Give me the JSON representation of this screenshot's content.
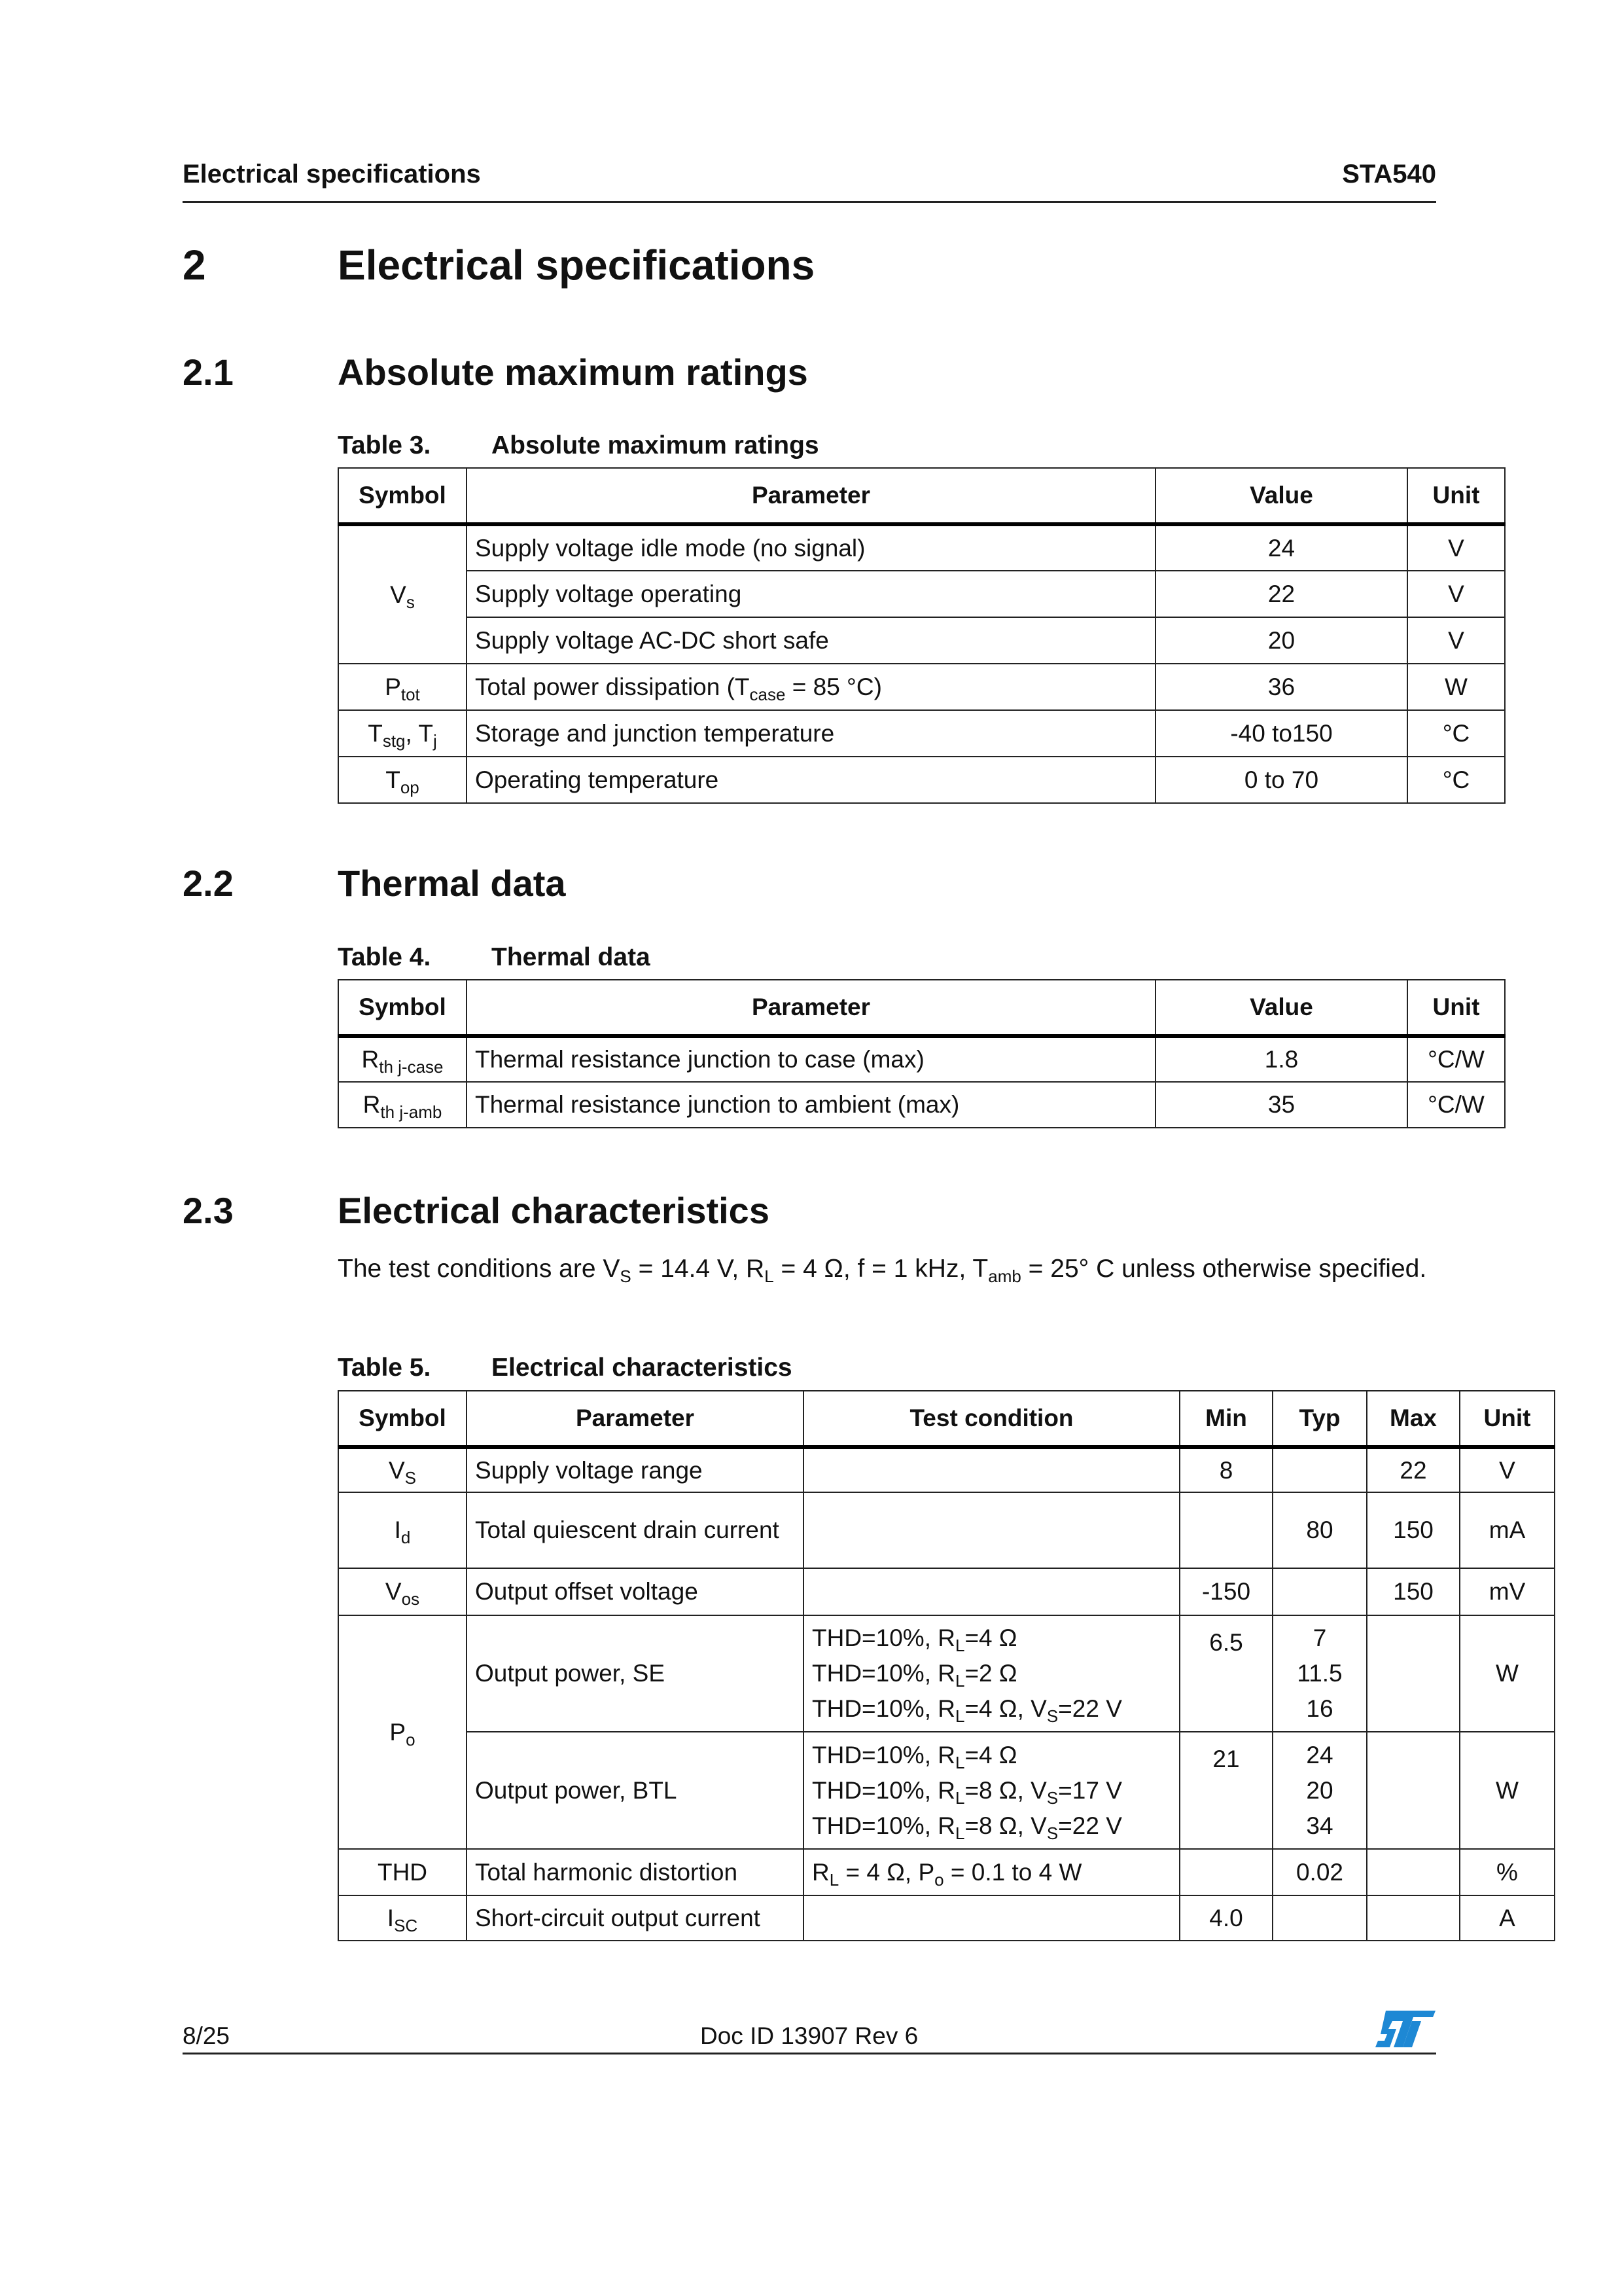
{
  "header": {
    "left": "Electrical specifications",
    "right": "STA540"
  },
  "chapter": {
    "number": "2",
    "title": "Electrical specifications"
  },
  "sections": [
    {
      "number": "2.1",
      "title": "Absolute maximum ratings"
    },
    {
      "number": "2.2",
      "title": "Thermal data"
    },
    {
      "number": "2.3",
      "title": "Electrical characteristics"
    }
  ],
  "table3": {
    "label": "Table 3.",
    "title": "Absolute maximum ratings",
    "headers": [
      "Symbol",
      "Parameter",
      "Value",
      "Unit"
    ],
    "rows": [
      {
        "symbol": [
          {
            "t": "V"
          },
          {
            "s": "s"
          }
        ],
        "span": 3,
        "parameter": [
          {
            "t": "Supply voltage idle mode (no signal)"
          }
        ],
        "value": "24",
        "unit": "V"
      },
      {
        "parameter": [
          {
            "t": "Supply voltage operating"
          }
        ],
        "value": "22",
        "unit": "V"
      },
      {
        "parameter": [
          {
            "t": "Supply voltage AC-DC short safe"
          }
        ],
        "value": "20",
        "unit": "V"
      },
      {
        "symbol": [
          {
            "t": "P"
          },
          {
            "s": "tot"
          }
        ],
        "span": 1,
        "parameter": [
          {
            "t": "Total power dissipation (T"
          },
          {
            "s": "case"
          },
          {
            "t": " = 85 °C)"
          }
        ],
        "value": "36",
        "unit": "W"
      },
      {
        "symbol": [
          {
            "t": "T"
          },
          {
            "s": "stg"
          },
          {
            "t": ", T"
          },
          {
            "s": "j"
          }
        ],
        "span": 1,
        "parameter": [
          {
            "t": "Storage and junction temperature"
          }
        ],
        "value": "-40 to150",
        "unit": "°C"
      },
      {
        "symbol": [
          {
            "t": "T"
          },
          {
            "s": "op"
          }
        ],
        "span": 1,
        "parameter": [
          {
            "t": "Operating temperature"
          }
        ],
        "value": "0 to 70",
        "unit": "°C"
      }
    ]
  },
  "table4": {
    "label": "Table 4.",
    "title": "Thermal data",
    "headers": [
      "Symbol",
      "Parameter",
      "Value",
      "Unit"
    ],
    "rows": [
      {
        "symbol": [
          {
            "t": "R"
          },
          {
            "s": "th j-case"
          }
        ],
        "span": 1,
        "parameter": [
          {
            "t": "Thermal resistance junction to case (max)"
          }
        ],
        "value": "1.8",
        "unit": "°C/W"
      },
      {
        "symbol": [
          {
            "t": "R"
          },
          {
            "s": "th j-amb"
          }
        ],
        "span": 1,
        "parameter": [
          {
            "t": "Thermal resistance junction to ambient (max)"
          }
        ],
        "value": "35",
        "unit": "°C/W"
      }
    ]
  },
  "intro": [
    {
      "t": "The test conditions are V"
    },
    {
      "s": "S"
    },
    {
      "t": " = 14.4 V, R"
    },
    {
      "s": "L"
    },
    {
      "t": " = 4 Ω, f = 1 kHz, T"
    },
    {
      "s": "amb"
    },
    {
      "t": " = 25° C unless otherwise specified."
    }
  ],
  "table5": {
    "label": "Table 5.",
    "title": "Electrical characteristics",
    "headers": [
      "Symbol",
      "Parameter",
      "Test condition",
      "Min",
      "Typ",
      "Max",
      "Unit"
    ],
    "rows": [
      {
        "symbol": [
          {
            "t": "V"
          },
          {
            "s": "S"
          }
        ],
        "span": 1,
        "parameter": "Supply voltage range",
        "conditions": [],
        "min": "8",
        "typ": [],
        "max": "22",
        "unit": "V"
      },
      {
        "symbol": [
          {
            "t": "I"
          },
          {
            "s": "d"
          }
        ],
        "span": 1,
        "parameter": "Total quiescent drain current",
        "conditions": [],
        "min": "",
        "typ": [
          "80"
        ],
        "max": "150",
        "unit": "mA"
      },
      {
        "symbol": [
          {
            "t": "V"
          },
          {
            "s": "os"
          }
        ],
        "span": 1,
        "parameter": "Output offset voltage",
        "conditions": [],
        "min": "-150",
        "typ": [],
        "max": "150",
        "unit": "mV"
      },
      {
        "symbol": [
          {
            "t": "P"
          },
          {
            "s": "o"
          }
        ],
        "span": 2,
        "parameter": "Output power, SE",
        "conditions": [
          [
            {
              "t": "THD=10%, R"
            },
            {
              "s": "L"
            },
            {
              "t": "=4 Ω"
            }
          ],
          [
            {
              "t": "THD=10%, R"
            },
            {
              "s": "L"
            },
            {
              "t": "=2 Ω"
            }
          ],
          [
            {
              "t": "THD=10%, R"
            },
            {
              "s": "L"
            },
            {
              "t": "=4 Ω, V"
            },
            {
              "s": "S"
            },
            {
              "t": "=22 V"
            }
          ]
        ],
        "min": "6.5",
        "typ": [
          "7",
          "11.5",
          "16"
        ],
        "max": "",
        "unit": "W"
      },
      {
        "parameter": "Output power, BTL",
        "conditions": [
          [
            {
              "t": "THD=10%, R"
            },
            {
              "s": "L"
            },
            {
              "t": "=4 Ω"
            }
          ],
          [
            {
              "t": "THD=10%, R"
            },
            {
              "s": "L"
            },
            {
              "t": "=8 Ω, V"
            },
            {
              "s": "S"
            },
            {
              "t": "=17 V"
            }
          ],
          [
            {
              "t": "THD=10%, R"
            },
            {
              "s": "L"
            },
            {
              "t": "=8 Ω, V"
            },
            {
              "s": "S"
            },
            {
              "t": "=22 V"
            }
          ]
        ],
        "min": "21",
        "typ": [
          "24",
          "20",
          "34"
        ],
        "max": "",
        "unit": "W"
      },
      {
        "symbol": [
          {
            "t": "THD"
          }
        ],
        "span": 1,
        "parameter": "Total harmonic distortion",
        "conditions": [
          [
            {
              "t": "R"
            },
            {
              "s": "L"
            },
            {
              "t": " = 4 Ω, P"
            },
            {
              "s": "o"
            },
            {
              "t": " = 0.1 to 4 W"
            }
          ]
        ],
        "min": "",
        "typ": [
          "0.02"
        ],
        "max": "",
        "unit": "%"
      },
      {
        "symbol": [
          {
            "t": "I"
          },
          {
            "s": "SC"
          }
        ],
        "span": 1,
        "parameter": "Short-circuit output current",
        "conditions": [],
        "min": "4.0",
        "typ": [],
        "max": "",
        "unit": "A"
      }
    ]
  },
  "footer": {
    "page": "8/25",
    "doc_id": "Doc ID 13907 Rev 6",
    "logo_text": "ST",
    "logo_color": "#1e88d4"
  }
}
